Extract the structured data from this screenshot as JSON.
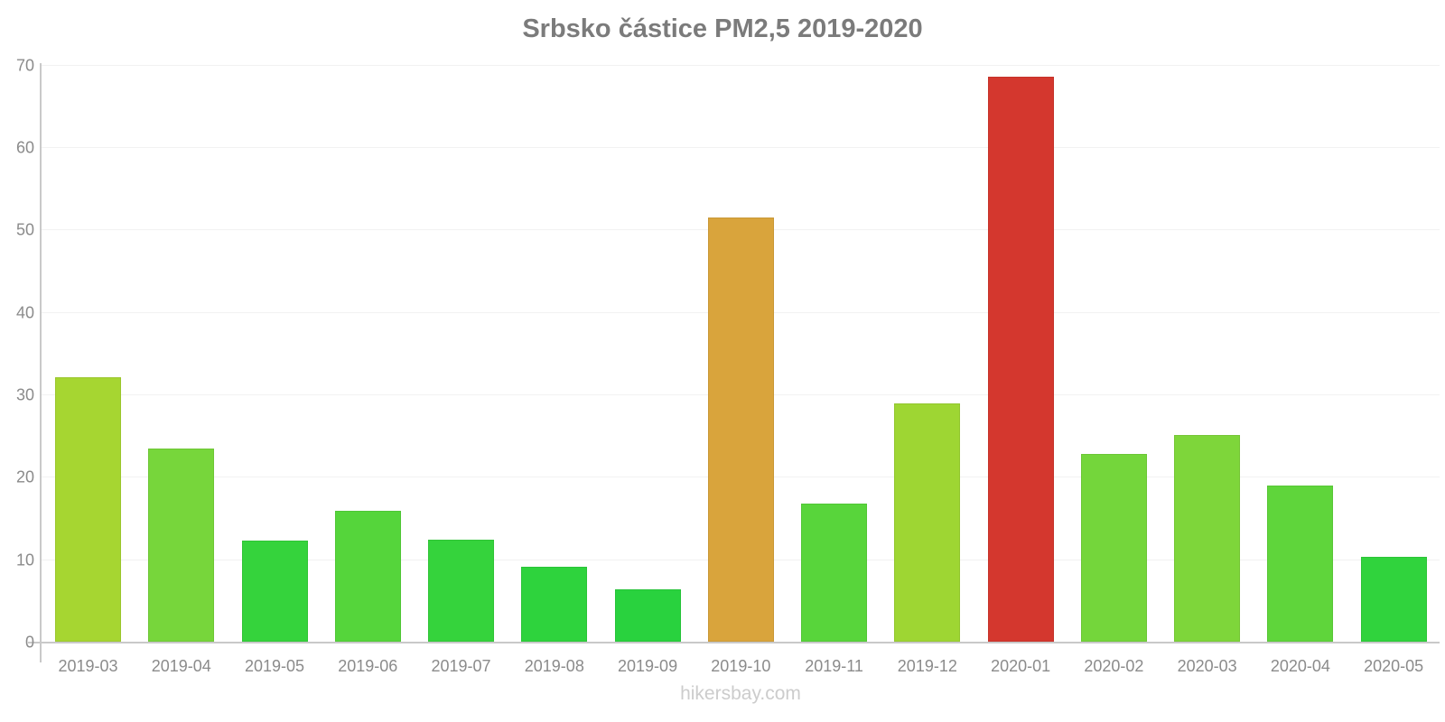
{
  "page": {
    "background": "#ffffff"
  },
  "chart_data": {
    "type": "bar",
    "title": "Srbsko částice PM2,5 2019-2020",
    "watermark": "hikersbay.com",
    "categories": [
      "2019-03",
      "2019-04",
      "2019-05",
      "2019-06",
      "2019-07",
      "2019-08",
      "2019-09",
      "2019-10",
      "2019-11",
      "2019-12",
      "2020-01",
      "2020-02",
      "2020-03",
      "2020-04",
      "2020-05"
    ],
    "values": [
      32.1,
      23.4,
      12.3,
      15.9,
      12.4,
      9.1,
      6.3,
      51.5,
      16.8,
      28.9,
      68.5,
      22.8,
      25.1,
      18.9,
      10.3
    ],
    "bar_colors": [
      "#a6d631",
      "#77d63b",
      "#35d33c",
      "#55d53b",
      "#35d33c",
      "#2ed33d",
      "#29d23e",
      "#d9a43c",
      "#58d53b",
      "#9ed633",
      "#d4372e",
      "#74d63b",
      "#7ed63a",
      "#5fd53b",
      "#30d33d"
    ],
    "xlabel": "",
    "ylabel": "",
    "ylim": [
      0,
      70
    ],
    "yticks": [
      0,
      10,
      20,
      30,
      40,
      50,
      60,
      70
    ],
    "grid": "horizontal-only",
    "legend": "none",
    "colors": {
      "axis_line": "#c9c9c9",
      "gridline": "#f2f2f2",
      "tick_label": "#8b8b8b",
      "title": "#7b7b7b",
      "watermark": "#cccccc"
    }
  }
}
